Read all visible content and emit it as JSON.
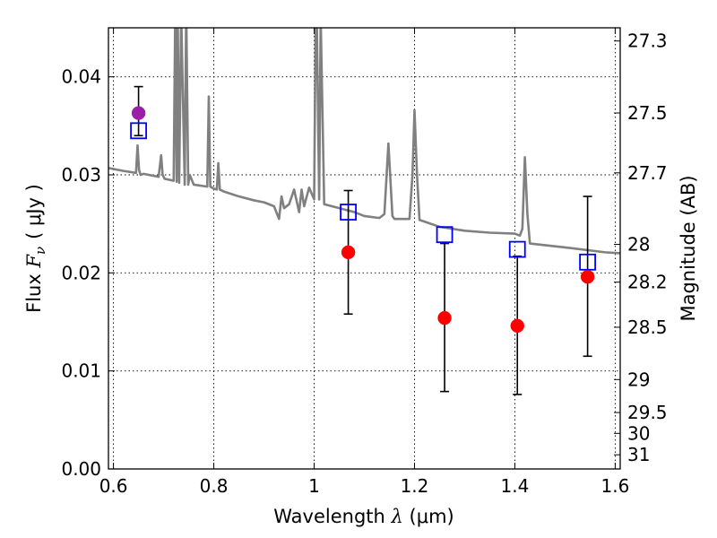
{
  "chart_data": {
    "type": "scatter",
    "xlabel": "Wavelength",
    "xlabel_symbol": "λ",
    "xlabel_unit": "(μm)",
    "ylabel": "Flux",
    "ylabel_symbol": "F",
    "ylabel_symbol_sub": "ν",
    "ylabel_unit": "( μJy )",
    "y2label": "Magnitude (AB)",
    "xlim": [
      0.59,
      1.61
    ],
    "ylim": [
      0.0,
      0.045
    ],
    "grid": true,
    "x_ticks": [
      {
        "value": 0.6,
        "label": "0.6"
      },
      {
        "value": 0.8,
        "label": "0.8"
      },
      {
        "value": 1.0,
        "label": "1"
      },
      {
        "value": 1.2,
        "label": "1.2"
      },
      {
        "value": 1.4,
        "label": "1.4"
      },
      {
        "value": 1.6,
        "label": "1.6"
      }
    ],
    "y_ticks": [
      {
        "value": 0.0,
        "label": "0.00"
      },
      {
        "value": 0.01,
        "label": "0.01"
      },
      {
        "value": 0.02,
        "label": "0.02"
      },
      {
        "value": 0.03,
        "label": "0.03"
      },
      {
        "value": 0.04,
        "label": "0.04"
      }
    ],
    "y2_ticks": [
      {
        "mag": 27.3,
        "label": "27.3"
      },
      {
        "mag": 27.5,
        "label": "27.5"
      },
      {
        "mag": 27.7,
        "label": "27.7"
      },
      {
        "mag": 28.0,
        "label": "28"
      },
      {
        "mag": 28.2,
        "label": "28.2"
      },
      {
        "mag": 28.5,
        "label": "28.5"
      },
      {
        "mag": 29.0,
        "label": "29"
      },
      {
        "mag": 29.5,
        "label": "29.5"
      },
      {
        "mag": 30.0,
        "label": "30"
      },
      {
        "mag": 31.0,
        "label": "31"
      }
    ],
    "observed": [
      {
        "x": 0.65,
        "y": 0.0363,
        "err_low": 0.034,
        "err_high": 0.039,
        "color": "#9b1fa6"
      },
      {
        "x": 1.068,
        "y": 0.0221,
        "err_low": 0.0158,
        "err_high": 0.0284,
        "color": "#ff0000"
      },
      {
        "x": 1.26,
        "y": 0.0154,
        "err_low": 0.0079,
        "err_high": 0.023,
        "color": "#ff0000"
      },
      {
        "x": 1.405,
        "y": 0.0146,
        "err_low": 0.0076,
        "err_high": 0.0217,
        "color": "#ff0000"
      },
      {
        "x": 1.545,
        "y": 0.0196,
        "err_low": 0.0115,
        "err_high": 0.0278,
        "color": "#ff0000"
      }
    ],
    "model_photometry": [
      {
        "x": 0.65,
        "y": 0.0345
      },
      {
        "x": 1.068,
        "y": 0.0262
      },
      {
        "x": 1.26,
        "y": 0.0239
      },
      {
        "x": 1.405,
        "y": 0.0224
      },
      {
        "x": 1.545,
        "y": 0.0211
      }
    ],
    "spectrum": {
      "x": [
        0.59,
        0.6,
        0.62,
        0.645,
        0.648,
        0.651,
        0.654,
        0.66,
        0.69,
        0.695,
        0.698,
        0.702,
        0.72,
        0.723,
        0.726,
        0.728,
        0.731,
        0.735,
        0.742,
        0.745,
        0.749,
        0.752,
        0.76,
        0.787,
        0.79,
        0.793,
        0.8,
        0.806,
        0.809,
        0.812,
        0.82,
        0.85,
        0.88,
        0.9,
        0.92,
        0.93,
        0.935,
        0.94,
        0.95,
        0.96,
        0.97,
        0.975,
        0.98,
        0.99,
        1.0,
        1.003,
        1.005,
        1.01,
        1.013,
        1.02,
        1.05,
        1.08,
        1.1,
        1.13,
        1.14,
        1.148,
        1.156,
        1.16,
        1.19,
        1.196,
        1.2,
        1.205,
        1.21,
        1.25,
        1.3,
        1.35,
        1.4,
        1.41,
        1.415,
        1.42,
        1.425,
        1.43,
        1.5,
        1.58,
        1.61
      ],
      "y": [
        0.0307,
        0.0306,
        0.0304,
        0.0302,
        0.033,
        0.0305,
        0.03,
        0.0301,
        0.0298,
        0.032,
        0.03,
        0.0296,
        0.0294,
        0.046,
        0.0293,
        0.047,
        0.0292,
        0.0465,
        0.029,
        0.047,
        0.029,
        0.03,
        0.029,
        0.0288,
        0.038,
        0.0288,
        0.0286,
        0.0285,
        0.0312,
        0.0285,
        0.0283,
        0.0278,
        0.0274,
        0.0272,
        0.0268,
        0.0255,
        0.0278,
        0.0266,
        0.027,
        0.0285,
        0.0262,
        0.0285,
        0.0268,
        0.0287,
        0.0275,
        0.046,
        0.047,
        0.0275,
        0.046,
        0.027,
        0.0266,
        0.0262,
        0.0258,
        0.0256,
        0.026,
        0.0332,
        0.0258,
        0.0255,
        0.0255,
        0.03,
        0.0366,
        0.03,
        0.0254,
        0.0247,
        0.0243,
        0.0241,
        0.024,
        0.0238,
        0.0245,
        0.0318,
        0.026,
        0.023,
        0.0226,
        0.0221,
        0.022
      ]
    },
    "colors": {
      "spectrum": "#808080",
      "model_marker": "#0000ff",
      "errorbar": "#000000",
      "grid": "#000000"
    }
  }
}
